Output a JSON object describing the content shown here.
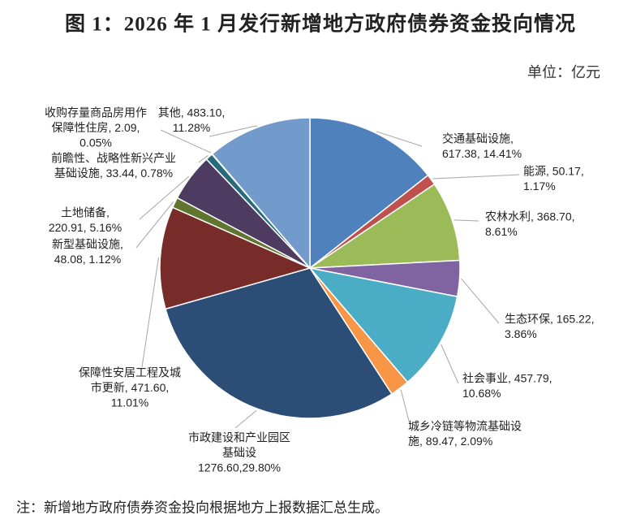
{
  "chart_data": {
    "type": "pie",
    "title": "图 1：2026 年 1 月发行新增地方政府债券资金投向情况",
    "unit": "单位：亿元",
    "note": "注：新增地方政府债券资金投向根据地方上报数据汇总生成。",
    "categories": [
      "交通基础设施",
      "能源",
      "农林水利",
      "生态环保",
      "社会事业",
      "城乡冷链等物流基础设施",
      "市政建设和产业园区基础设",
      "保障性安居工程及城市更新",
      "新型基础设施",
      "土地储备",
      "前瞻性、战略性新兴产业基础设施",
      "收购存量商品房用作保障性住房",
      "其他"
    ],
    "values": [
      617.38,
      50.17,
      368.7,
      165.22,
      457.79,
      89.47,
      1276.6,
      471.6,
      48.08,
      220.91,
      33.44,
      2.09,
      483.1
    ],
    "value_labels": [
      [
        "交通基础设施,",
        "617.38, 14.41%"
      ],
      [
        "能源, 50.17,",
        "1.17%"
      ],
      [
        "农林水利, 368.70,",
        "8.61%"
      ],
      [
        "生态环保, 165.22,",
        "3.86%"
      ],
      [
        "社会事业, 457.79,",
        "10.68%"
      ],
      [
        "城乡冷链等物流基础设",
        "施, 89.47, 2.09%"
      ],
      [
        "市政建设和产业园区",
        "基础设",
        "1276.60,29.80%"
      ],
      [
        "保障性安居工程及城",
        "市更新, 471.60,",
        "11.01%"
      ],
      [
        "新型基础设施,",
        "48.08, 1.12%"
      ],
      [
        "土地储备,",
        "220.91, 5.16%"
      ],
      [
        "前瞻性、战略性新兴产业",
        "基础设施, 33.44, 0.78%"
      ],
      [
        "收购存量商品房用作",
        "保障性住房, 2.09,",
        "0.05%"
      ],
      [
        "其他, 483.10,",
        "11.28%"
      ]
    ],
    "colors": [
      "#4f81bd",
      "#c0504d",
      "#9bbb59",
      "#8064a2",
      "#4bacc6",
      "#f79646",
      "#2c4d75",
      "#772c2a",
      "#5f7530",
      "#4d3b62",
      "#276a7c",
      "#b65708",
      "#729aca"
    ]
  }
}
